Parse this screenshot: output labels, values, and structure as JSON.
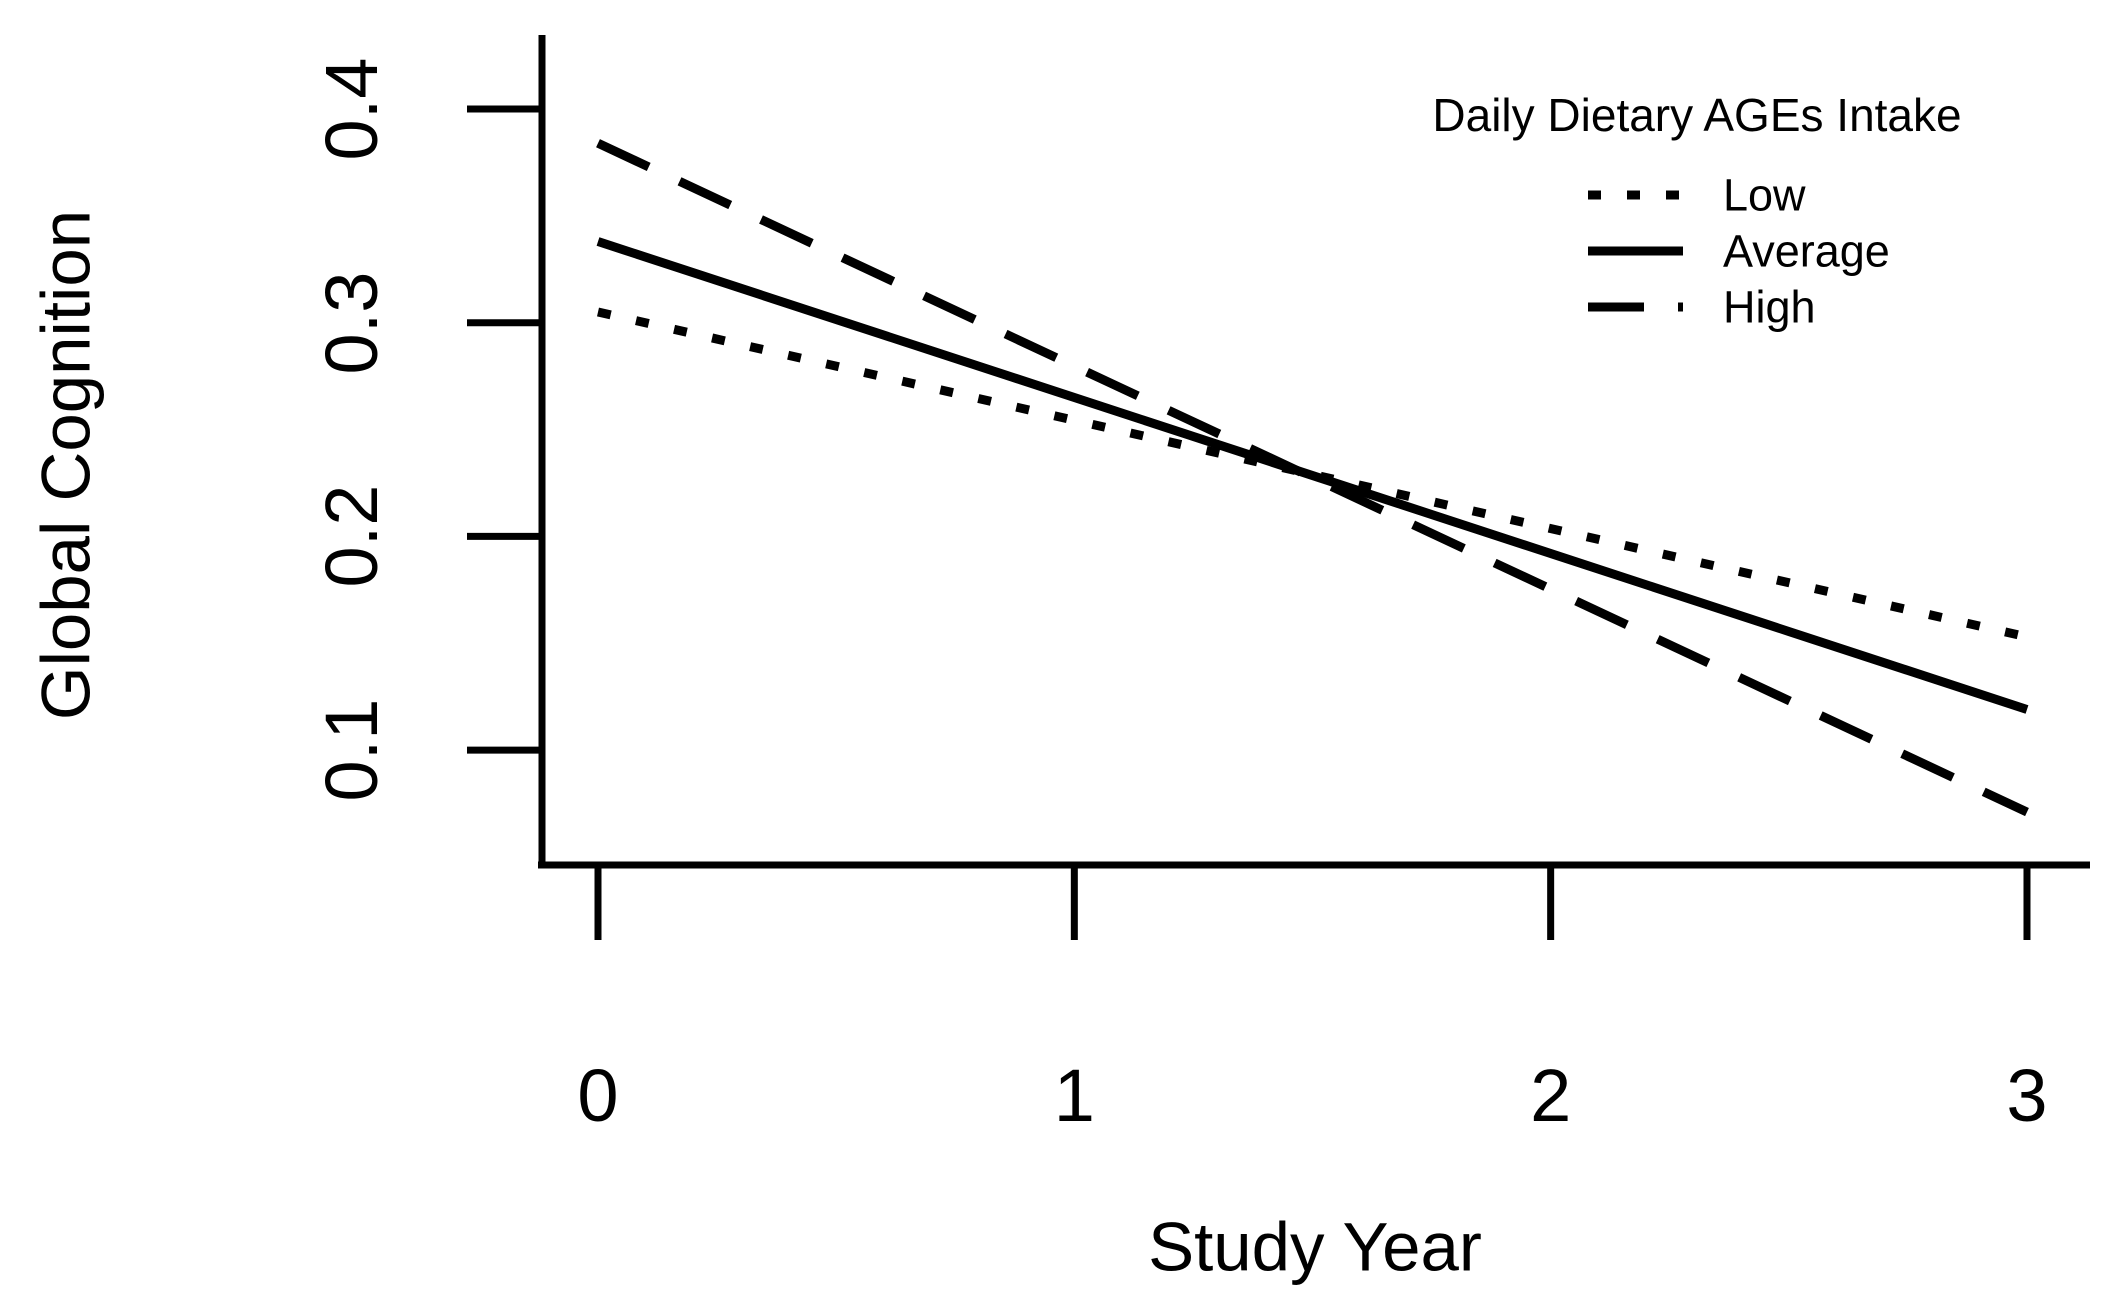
{
  "chart_data": {
    "type": "line",
    "xlabel": "Study Year",
    "ylabel": "Global Cognition",
    "x_ticks": [
      "0",
      "1",
      "2",
      "3"
    ],
    "y_ticks": [
      "0.1",
      "0.2",
      "0.3",
      "0.4"
    ],
    "xlim": [
      0,
      3
    ],
    "ylim": [
      0.05,
      0.44
    ],
    "grid": false,
    "legend": {
      "title": "Daily Dietary AGEs Intake",
      "position": "top-right",
      "entries": [
        {
          "label": "Low",
          "style": "dotted"
        },
        {
          "label": "Average",
          "style": "solid"
        },
        {
          "label": "High",
          "style": "dashed"
        }
      ]
    },
    "series": [
      {
        "name": "Low",
        "style": "dotted",
        "x": [
          0,
          3
        ],
        "values": [
          0.305,
          0.153
        ]
      },
      {
        "name": "Average",
        "style": "solid",
        "x": [
          0,
          3
        ],
        "values": [
          0.338,
          0.119
        ]
      },
      {
        "name": "High",
        "style": "dashed",
        "x": [
          0,
          3
        ],
        "values": [
          0.384,
          0.071
        ]
      }
    ],
    "colors": {
      "ink": "#000000",
      "background": "#ffffff"
    }
  }
}
